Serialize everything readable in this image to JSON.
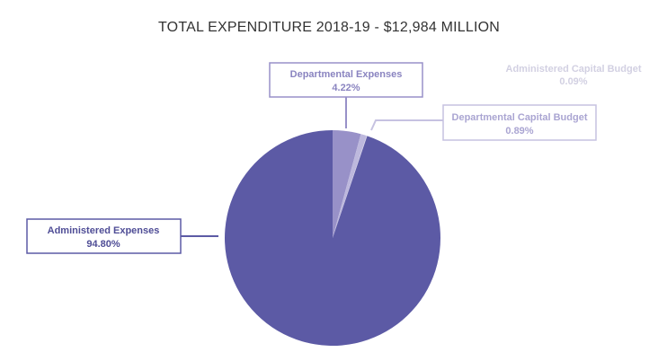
{
  "chart_data": {
    "type": "pie",
    "title": "TOTAL EXPENDITURE 2018-19 - $12,984 MILLION",
    "slices": [
      {
        "name": "Departmental Expenses",
        "value_label": "4.22%",
        "value": 4.22,
        "color": "#9891c8"
      },
      {
        "name": "Departmental Capital Budget",
        "value_label": "0.89%",
        "value": 0.89,
        "color": "#bdb8dd"
      },
      {
        "name": "Administered Capital Budget",
        "value_label": "0.09%",
        "value": 0.09,
        "color": "#d4d1e8"
      },
      {
        "name": "Administered Expenses",
        "value_label": "94.80%",
        "value": 94.8,
        "color": "#5c5aa5"
      }
    ]
  }
}
